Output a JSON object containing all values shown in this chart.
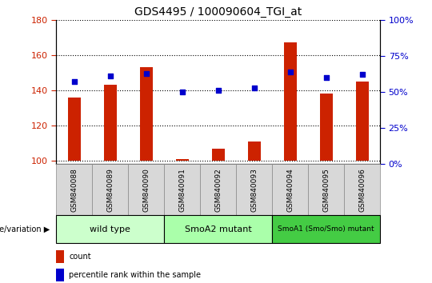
{
  "title": "GDS4495 / 100090604_TGI_at",
  "samples": [
    "GSM840088",
    "GSM840089",
    "GSM840090",
    "GSM840091",
    "GSM840092",
    "GSM840093",
    "GSM840094",
    "GSM840095",
    "GSM840096"
  ],
  "count_values": [
    136,
    143,
    153,
    101,
    107,
    111,
    167,
    138,
    145
  ],
  "percentile_values": [
    57,
    61,
    63,
    50,
    51,
    53,
    64,
    60,
    62
  ],
  "ylim_left": [
    98,
    180
  ],
  "ylim_right": [
    0,
    100
  ],
  "yticks_left": [
    100,
    120,
    140,
    160,
    180
  ],
  "yticks_right": [
    0,
    25,
    50,
    75,
    100
  ],
  "groups": [
    {
      "label": "wild type",
      "indices": [
        0,
        1,
        2
      ],
      "color": "#ccffcc"
    },
    {
      "label": "SmoA2 mutant",
      "indices": [
        3,
        4,
        5
      ],
      "color": "#aaffaa"
    },
    {
      "label": "SmoA1 (Smo/Smo) mutant",
      "indices": [
        6,
        7,
        8
      ],
      "color": "#44cc44"
    }
  ],
  "bar_color": "#cc2200",
  "dot_color": "#0000cc",
  "bar_bottom": 100,
  "count_label": "count",
  "percentile_label": "percentile rank within the sample",
  "group_row_label": "genotype/variation",
  "tick_color_left": "#cc2200",
  "tick_color_right": "#0000cc",
  "bar_width": 0.35,
  "sample_bg_color": "#d8d8d8",
  "sample_border_color": "#888888"
}
